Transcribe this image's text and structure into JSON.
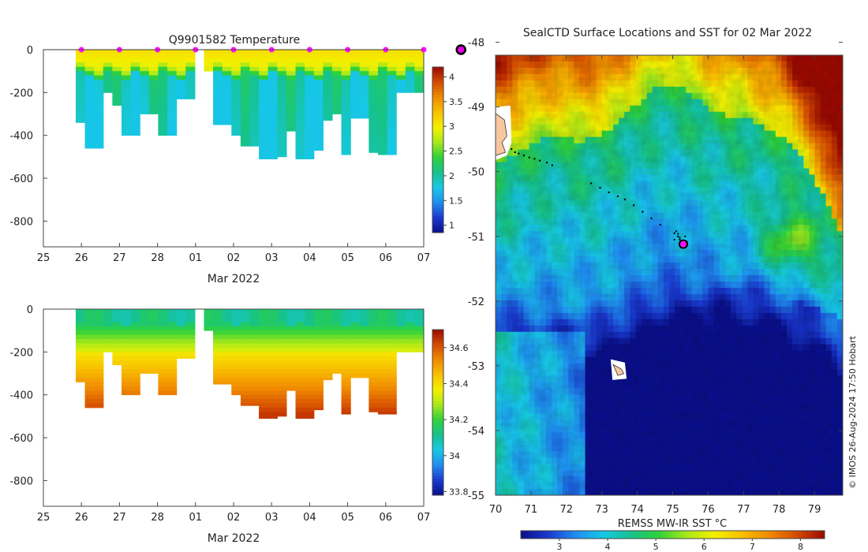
{
  "chart_data": [
    {
      "type": "heatmap",
      "title": "Q9901582  Temperature",
      "xlabel": "Mar 2022",
      "x_ticks": [
        "25",
        "26",
        "27",
        "28",
        "01",
        "02",
        "03",
        "04",
        "05",
        "06",
        "07"
      ],
      "y_ticks": [
        0,
        -200,
        -400,
        -600,
        -800
      ],
      "ylim": [
        -920,
        0
      ],
      "colorbar": {
        "ticks": [
          1,
          1.5,
          2,
          2.5,
          3,
          3.5,
          4
        ],
        "range": [
          0.85,
          4.2
        ],
        "colors": [
          "#0a0f8a",
          "#1a3ad0",
          "#1f8ef0",
          "#17c8e6",
          "#16c28c",
          "#2fd23a",
          "#a8e81a",
          "#f4f000",
          "#f8c000",
          "#f08a00",
          "#d44a00",
          "#9a0a00"
        ]
      },
      "marker_positions_day": [
        1,
        2,
        3,
        4,
        5,
        6,
        7,
        8,
        9,
        10,
        11
      ],
      "profiles_depth_m": [
        340,
        460,
        460,
        200,
        260,
        400,
        400,
        300,
        300,
        400,
        400,
        230,
        230,
        0,
        100,
        350,
        350,
        400,
        450,
        450,
        510,
        510,
        500,
        380,
        510,
        510,
        470,
        330,
        300,
        490,
        320,
        320,
        480,
        490,
        490,
        200,
        200,
        200
      ]
    },
    {
      "type": "heatmap",
      "title": "",
      "xlabel": "Mar 2022",
      "x_ticks": [
        "25",
        "26",
        "27",
        "28",
        "01",
        "02",
        "03",
        "04",
        "05",
        "06",
        "07"
      ],
      "y_ticks": [
        0,
        -200,
        -400,
        -600,
        -800
      ],
      "ylim": [
        -920,
        0
      ],
      "colorbar": {
        "ticks": [
          33.8,
          34,
          34.2,
          34.4,
          34.6
        ],
        "range": [
          33.78,
          34.7
        ],
        "colors": [
          "#0a0f8a",
          "#1a3ad0",
          "#1f8ef0",
          "#17c8e6",
          "#16c28c",
          "#2fd23a",
          "#a8e81a",
          "#f4f000",
          "#f8c000",
          "#f08a00",
          "#d44a00",
          "#9a0a00"
        ]
      }
    },
    {
      "type": "heatmap",
      "title": "SealCTD Surface Locations and SST for 02 Mar 2022",
      "xlabel": "",
      "x_ticks": [
        "70",
        "71",
        "72",
        "73",
        "74",
        "75",
        "76",
        "77",
        "78",
        "79"
      ],
      "y_ticks": [
        "-48",
        "-49",
        "-50",
        "-51",
        "-52",
        "-53",
        "-54",
        "-55"
      ],
      "xlim": [
        70,
        79.8
      ],
      "ylim": [
        -55,
        -48.2
      ],
      "colorbar": {
        "label": "REMSS MW-IR SST °C",
        "ticks": [
          3,
          4,
          5,
          6,
          7,
          8
        ],
        "range": [
          2.2,
          8.5
        ],
        "colors": [
          "#0a0f8a",
          "#1a3ad0",
          "#1f8ef0",
          "#17c8e6",
          "#16c28c",
          "#2fd23a",
          "#a8e81a",
          "#f4f000",
          "#f8c000",
          "#f08a00",
          "#d44a00",
          "#9a0a00"
        ]
      },
      "track_points": [
        [
          70.45,
          -49.65
        ],
        [
          70.55,
          -49.7
        ],
        [
          70.65,
          -49.72
        ],
        [
          70.8,
          -49.75
        ],
        [
          70.95,
          -49.78
        ],
        [
          71.1,
          -49.8
        ],
        [
          71.25,
          -49.83
        ],
        [
          71.45,
          -49.86
        ],
        [
          71.6,
          -49.9
        ],
        [
          72.7,
          -50.18
        ],
        [
          72.95,
          -50.25
        ],
        [
          73.2,
          -50.32
        ],
        [
          73.45,
          -50.38
        ],
        [
          73.65,
          -50.43
        ],
        [
          73.9,
          -50.52
        ],
        [
          74.15,
          -50.62
        ],
        [
          74.4,
          -50.72
        ],
        [
          74.65,
          -50.82
        ],
        [
          75.05,
          -50.95
        ],
        [
          75.15,
          -51.0
        ],
        [
          75.2,
          -51.05
        ],
        [
          75.28,
          -51.1
        ]
      ],
      "current_position": [
        75.3,
        -51.12
      ],
      "copyright": "© IMOS 26-Aug-2024 17:50 Hobart"
    }
  ]
}
